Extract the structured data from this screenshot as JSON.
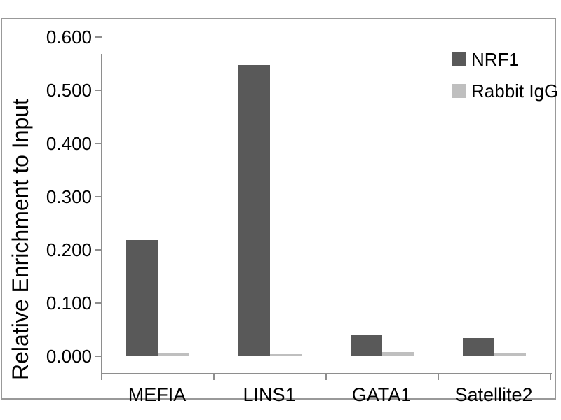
{
  "chart_data": {
    "type": "bar",
    "title": "",
    "xlabel": "",
    "ylabel": "Relative Enrichment to Input",
    "categories": [
      "MEFIA",
      "LINS1",
      "GATA1",
      "Satellite2"
    ],
    "series": [
      {
        "name": "NRF1",
        "color": "#595959",
        "values": [
          0.218,
          0.548,
          0.039,
          0.034
        ]
      },
      {
        "name": "Rabbit IgG",
        "color": "#BFBFBF",
        "values": [
          0.005,
          0.004,
          0.008,
          0.007
        ]
      }
    ],
    "ylim": [
      0.0,
      0.6
    ],
    "ytick_step": 0.1,
    "ytick_labels": [
      "0.000",
      "0.100",
      "0.200",
      "0.300",
      "0.400",
      "0.500",
      "0.600"
    ],
    "grid": false,
    "legend_position": "top-right",
    "colors": {
      "axis": "#8E8E8E",
      "panel_border": "#999999",
      "text": "#000000",
      "background": "#FFFFFF"
    }
  }
}
